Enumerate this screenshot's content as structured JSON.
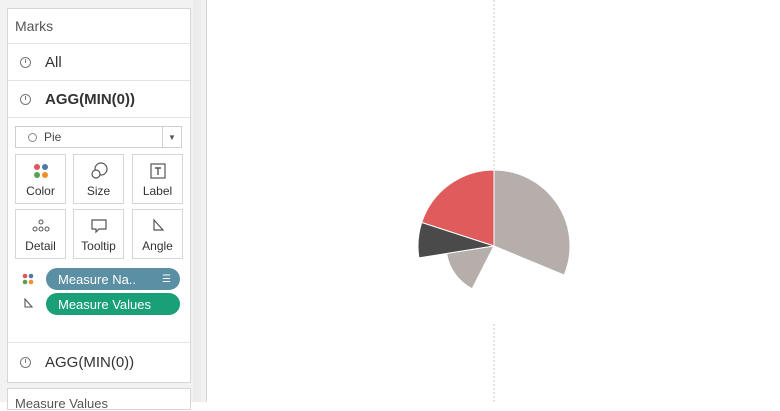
{
  "marks": {
    "title": "Marks",
    "rows": [
      {
        "label": "All"
      },
      {
        "label": "AGG(MIN(0))"
      }
    ],
    "mark_type": "Pie",
    "buttons": [
      {
        "label": "Color",
        "icon": "color-dots-icon"
      },
      {
        "label": "Size",
        "icon": "size-icon"
      },
      {
        "label": "Label",
        "icon": "label-icon"
      },
      {
        "label": "Detail",
        "icon": "detail-icon"
      },
      {
        "label": "Tooltip",
        "icon": "tooltip-icon"
      },
      {
        "label": "Angle",
        "icon": "angle-icon"
      }
    ],
    "pills": [
      {
        "label": "Measure Na..",
        "color": "#5b8fa3",
        "icon": "color-dots-icon",
        "sort_icon": "sort-icon"
      },
      {
        "label": "Measure Values",
        "color": "#1aa079",
        "icon": "angle-icon"
      }
    ],
    "second_layer": "AGG(MIN(0))"
  },
  "bottom_card": {
    "title": "Measure Values"
  },
  "chart_data": {
    "type": "pie",
    "slices": [
      {
        "value": 3.2,
        "color": "#e05c5c",
        "radius": "large"
      },
      {
        "value": 1.2,
        "color": "#4a4a4a",
        "radius": "large"
      },
      {
        "value": 2.4,
        "color": "#b6aeab",
        "radius": "small"
      },
      {
        "value": 4.2,
        "color": "#ffffff",
        "radius": "gap"
      },
      {
        "value": 5.0,
        "color": "#b6aeab",
        "radius": "large"
      }
    ]
  }
}
